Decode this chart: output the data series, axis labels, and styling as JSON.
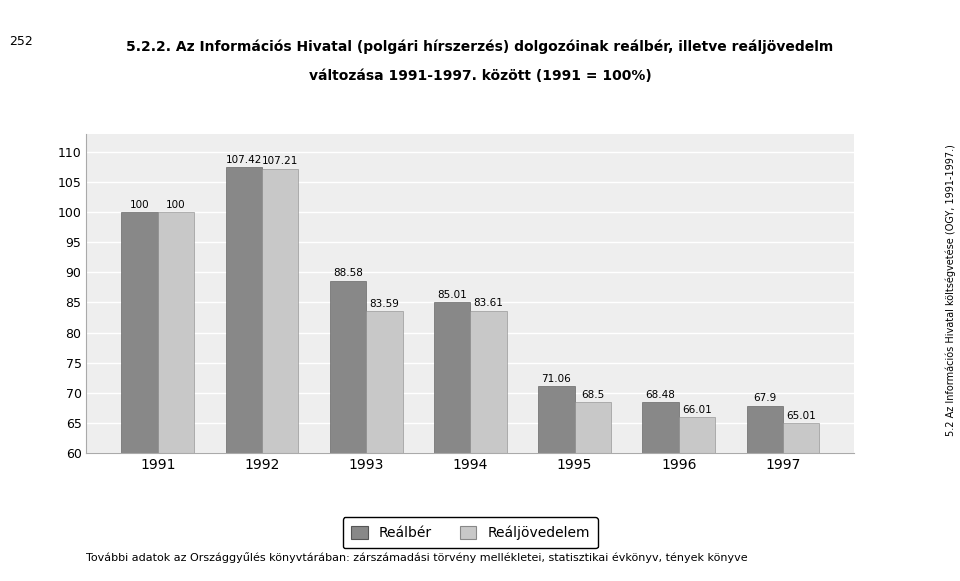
{
  "title_line1": "5.2.2. Az Információs Hivatal (polgári hírszerzés) dolgozóinak reálbér, illetve reáljövedelm",
  "title_line2": "változása 1991-1997. között (1991 = 100%)",
  "years": [
    "1991",
    "1992",
    "1993",
    "1994",
    "1995",
    "1996",
    "1997"
  ],
  "realbер": [
    100.0,
    107.42,
    88.58,
    85.01,
    71.06,
    68.48,
    67.9
  ],
  "realjövedelem": [
    100.0,
    107.21,
    83.59,
    83.61,
    68.5,
    66.01,
    65.01
  ],
  "realbер_labels": [
    "100",
    "107.42",
    "88.58",
    "85.01",
    "71.06",
    "68.48",
    "67.9"
  ],
  "realjövedelem_labels": [
    "100",
    "107.21",
    "83.59",
    "83.61",
    "68.5",
    "66.01",
    "65.01"
  ],
  "bar_color_realbер": "#888888",
  "bar_color_realjövedelem": "#c8c8c8",
  "ylim": [
    60,
    113
  ],
  "yticks": [
    60,
    65,
    70,
    75,
    80,
    85,
    90,
    95,
    100,
    105,
    110
  ],
  "legend_labels": [
    "Reálbér",
    "Reáljövedelem"
  ],
  "footer_text": "További adatok az Országgyűlés könyvtárában: zárszámadási törvény mellékletei, statisztikai évkönyv, tények könyve",
  "left_label": "252",
  "right_label": "5.2 Az Információs Hivatal költségvetése (OGY, 1991-1997.)",
  "background_color": "#ffffff",
  "chart_bg_color": "#eeeeee"
}
